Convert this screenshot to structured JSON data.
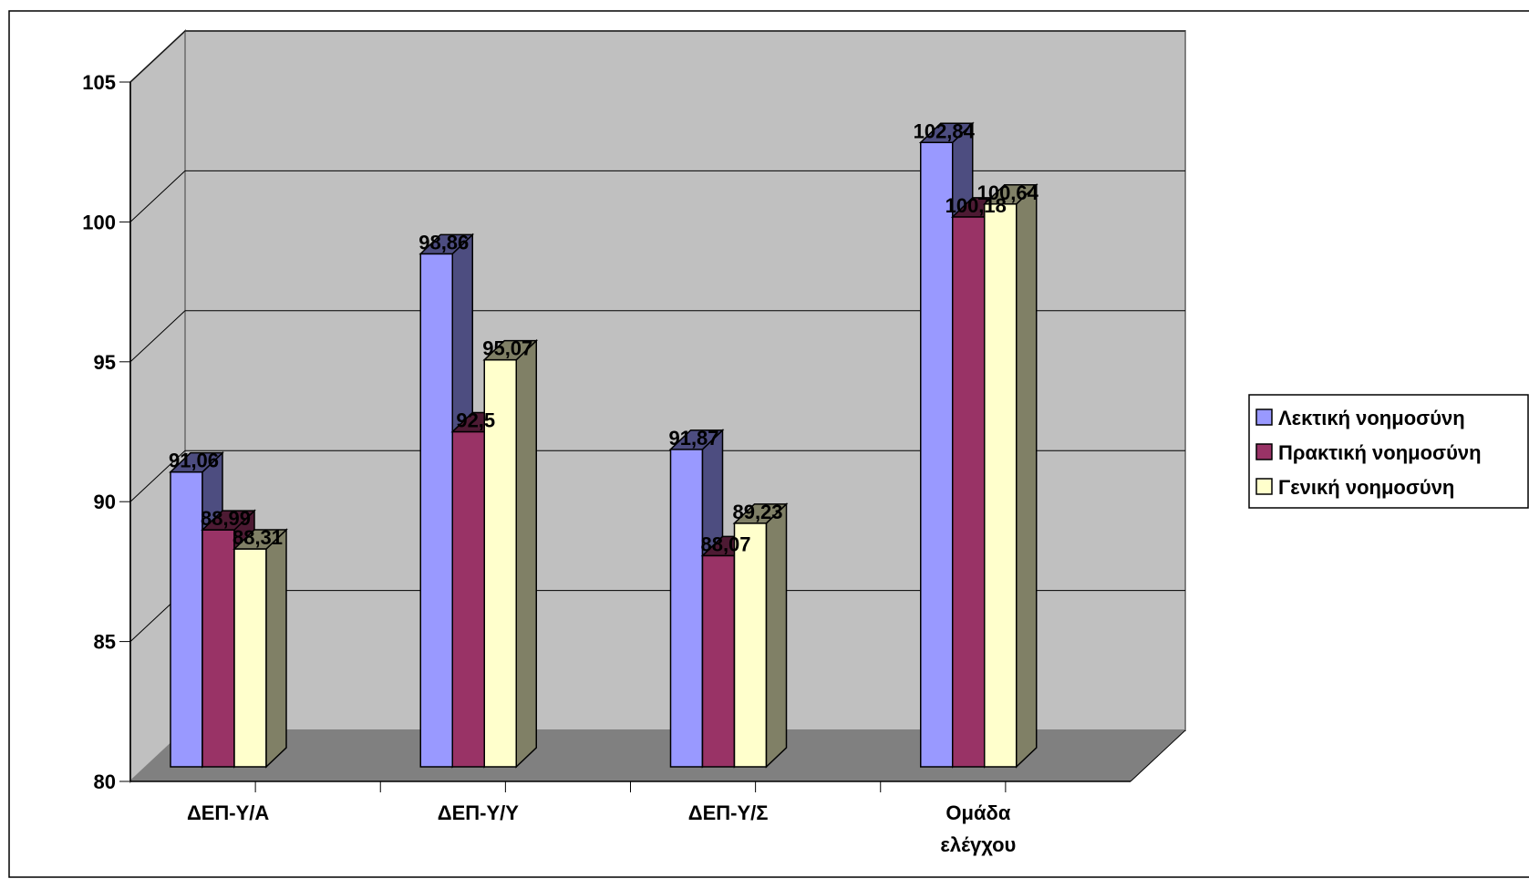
{
  "chart_data": {
    "type": "bar",
    "variant": "3d-clustered-column",
    "title": "",
    "xlabel": "",
    "ylabel": "",
    "ylim": [
      80,
      105
    ],
    "yticks": [
      80,
      85,
      90,
      95,
      100,
      105
    ],
    "ytick_labels": [
      "80",
      "85",
      "90",
      "95",
      "100",
      "105"
    ],
    "grid": true,
    "legend_position": "right",
    "categories": [
      [
        "ΔΕΠ-Υ/Α"
      ],
      [
        "ΔΕΠ-Υ/Υ"
      ],
      [
        "ΔΕΠ-Υ/Σ"
      ],
      [
        "Ομάδα",
        "ελέγχου"
      ]
    ],
    "series": [
      {
        "name": "Λεκτική νοημοσύνη",
        "values": [
          91.06,
          98.86,
          91.87,
          102.84
        ],
        "labels": [
          "91,06",
          "98,86",
          "91,87",
          "102,84"
        ],
        "color": "#9999ff",
        "side_color": "#4d4d80"
      },
      {
        "name": "Πρακτική νοημοσύνη",
        "values": [
          88.99,
          92.5,
          88.07,
          100.18
        ],
        "labels": [
          "88,99",
          "92,5",
          "88,07",
          "100,18"
        ],
        "color": "#993366",
        "side_color": "#4d1a33"
      },
      {
        "name": "Γενική νοημοσύνη",
        "values": [
          88.31,
          95.07,
          89.23,
          100.64
        ],
        "labels": [
          "88,31",
          "95,07",
          "89,23",
          "100,64"
        ],
        "color": "#ffffcc",
        "side_color": "#808066"
      }
    ],
    "colors": {
      "back_wall": "#c0c0c0",
      "floor": "#808080",
      "grid_line": "#000000",
      "frame": "#000000"
    }
  }
}
